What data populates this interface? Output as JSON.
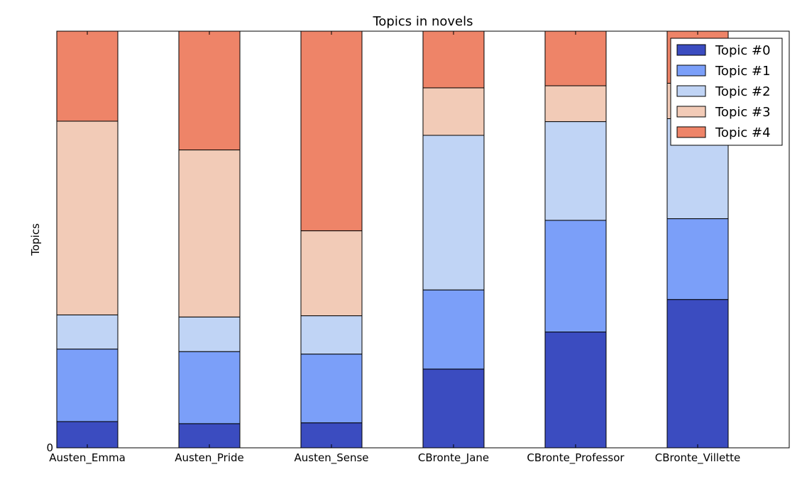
{
  "chart_data": {
    "type": "bar",
    "stacked": true,
    "title": "Topics in novels",
    "xlabel": "",
    "ylabel": "Topics",
    "ylim": [
      0,
      1
    ],
    "y_tick_labels": [
      "0"
    ],
    "grid": false,
    "legend_placement": "top-right",
    "categories": [
      "Austen_Emma",
      "Austen_Pride",
      "Austen_Sense",
      "CBronte_Jane",
      "CBronte_Professor",
      "CBronte_Villette"
    ],
    "series": [
      {
        "name": "Topic #0",
        "color": "#3b4cc0",
        "values": [
          0.063,
          0.058,
          0.06,
          0.189,
          0.278,
          0.356
        ]
      },
      {
        "name": "Topic #1",
        "color": "#7b9ff9",
        "values": [
          0.174,
          0.173,
          0.165,
          0.19,
          0.268,
          0.194
        ]
      },
      {
        "name": "Topic #2",
        "color": "#c0d4f5",
        "values": [
          0.082,
          0.083,
          0.092,
          0.371,
          0.237,
          0.24
        ]
      },
      {
        "name": "Topic #3",
        "color": "#f2cbb7",
        "values": [
          0.465,
          0.401,
          0.204,
          0.114,
          0.086,
          0.085
        ]
      },
      {
        "name": "Topic #4",
        "color": "#ee8468",
        "values": [
          0.216,
          0.285,
          0.479,
          0.136,
          0.131,
          0.125
        ]
      }
    ]
  }
}
